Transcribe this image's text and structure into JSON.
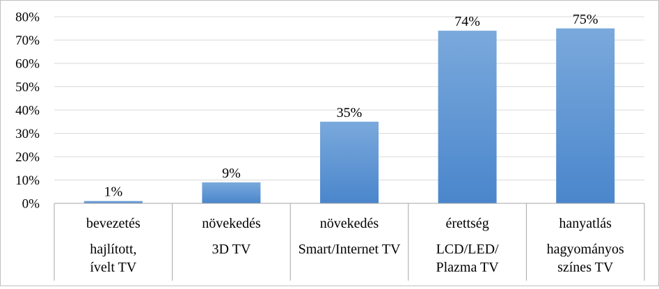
{
  "chart_data": {
    "type": "bar",
    "categories": [
      [
        "bevezetés",
        "hajlított,",
        "ívelt TV"
      ],
      [
        "növekedés",
        "3D TV"
      ],
      [
        "növekedés",
        "Smart/Internet TV"
      ],
      [
        "érettség",
        "LCD/LED/",
        "Plazma TV"
      ],
      [
        "hanyatlás",
        "hagyományos",
        "színes TV"
      ]
    ],
    "values": [
      1,
      9,
      35,
      74,
      75
    ],
    "data_labels": [
      "1%",
      "9%",
      "35%",
      "74%",
      "75%"
    ],
    "title": "",
    "xlabel": "",
    "ylabel": "",
    "ylim": [
      0,
      80
    ],
    "yticks": [
      "0%",
      "10%",
      "20%",
      "30%",
      "40%",
      "50%",
      "60%",
      "70%",
      "80%"
    ],
    "grid": true,
    "legend": "none",
    "colors": {
      "bar_top": "#7aa9dc",
      "bar_bottom": "#4a86cc",
      "grid": "#d9d9d9",
      "axis": "#a6a6a6"
    }
  }
}
